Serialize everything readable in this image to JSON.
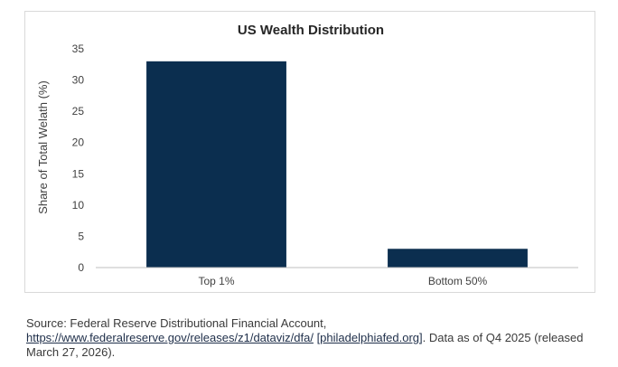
{
  "chart_data": {
    "type": "bar",
    "title": "US Wealth Distribution",
    "ylabel": "Share of Total Welath (%)",
    "xlabel": "",
    "categories": [
      "Top 1%",
      "Bottom 50%"
    ],
    "values": [
      33,
      3
    ],
    "ylim": [
      0,
      35
    ],
    "yticks": [
      0,
      5,
      10,
      15,
      20,
      25,
      30,
      35
    ],
    "bar_color": "#0b2e4f",
    "grid": false,
    "legend": "none"
  },
  "caption": {
    "prefix": "Source: Federal Reserve Distributional Financial Account, ",
    "link1": "https://www.federalreserve.gov/releases/z1/dataviz/dfa/",
    "link2": "[philadelphiafed.org]",
    "suffix": ". Data as of Q4 2025 (released March 27, 2026)."
  }
}
